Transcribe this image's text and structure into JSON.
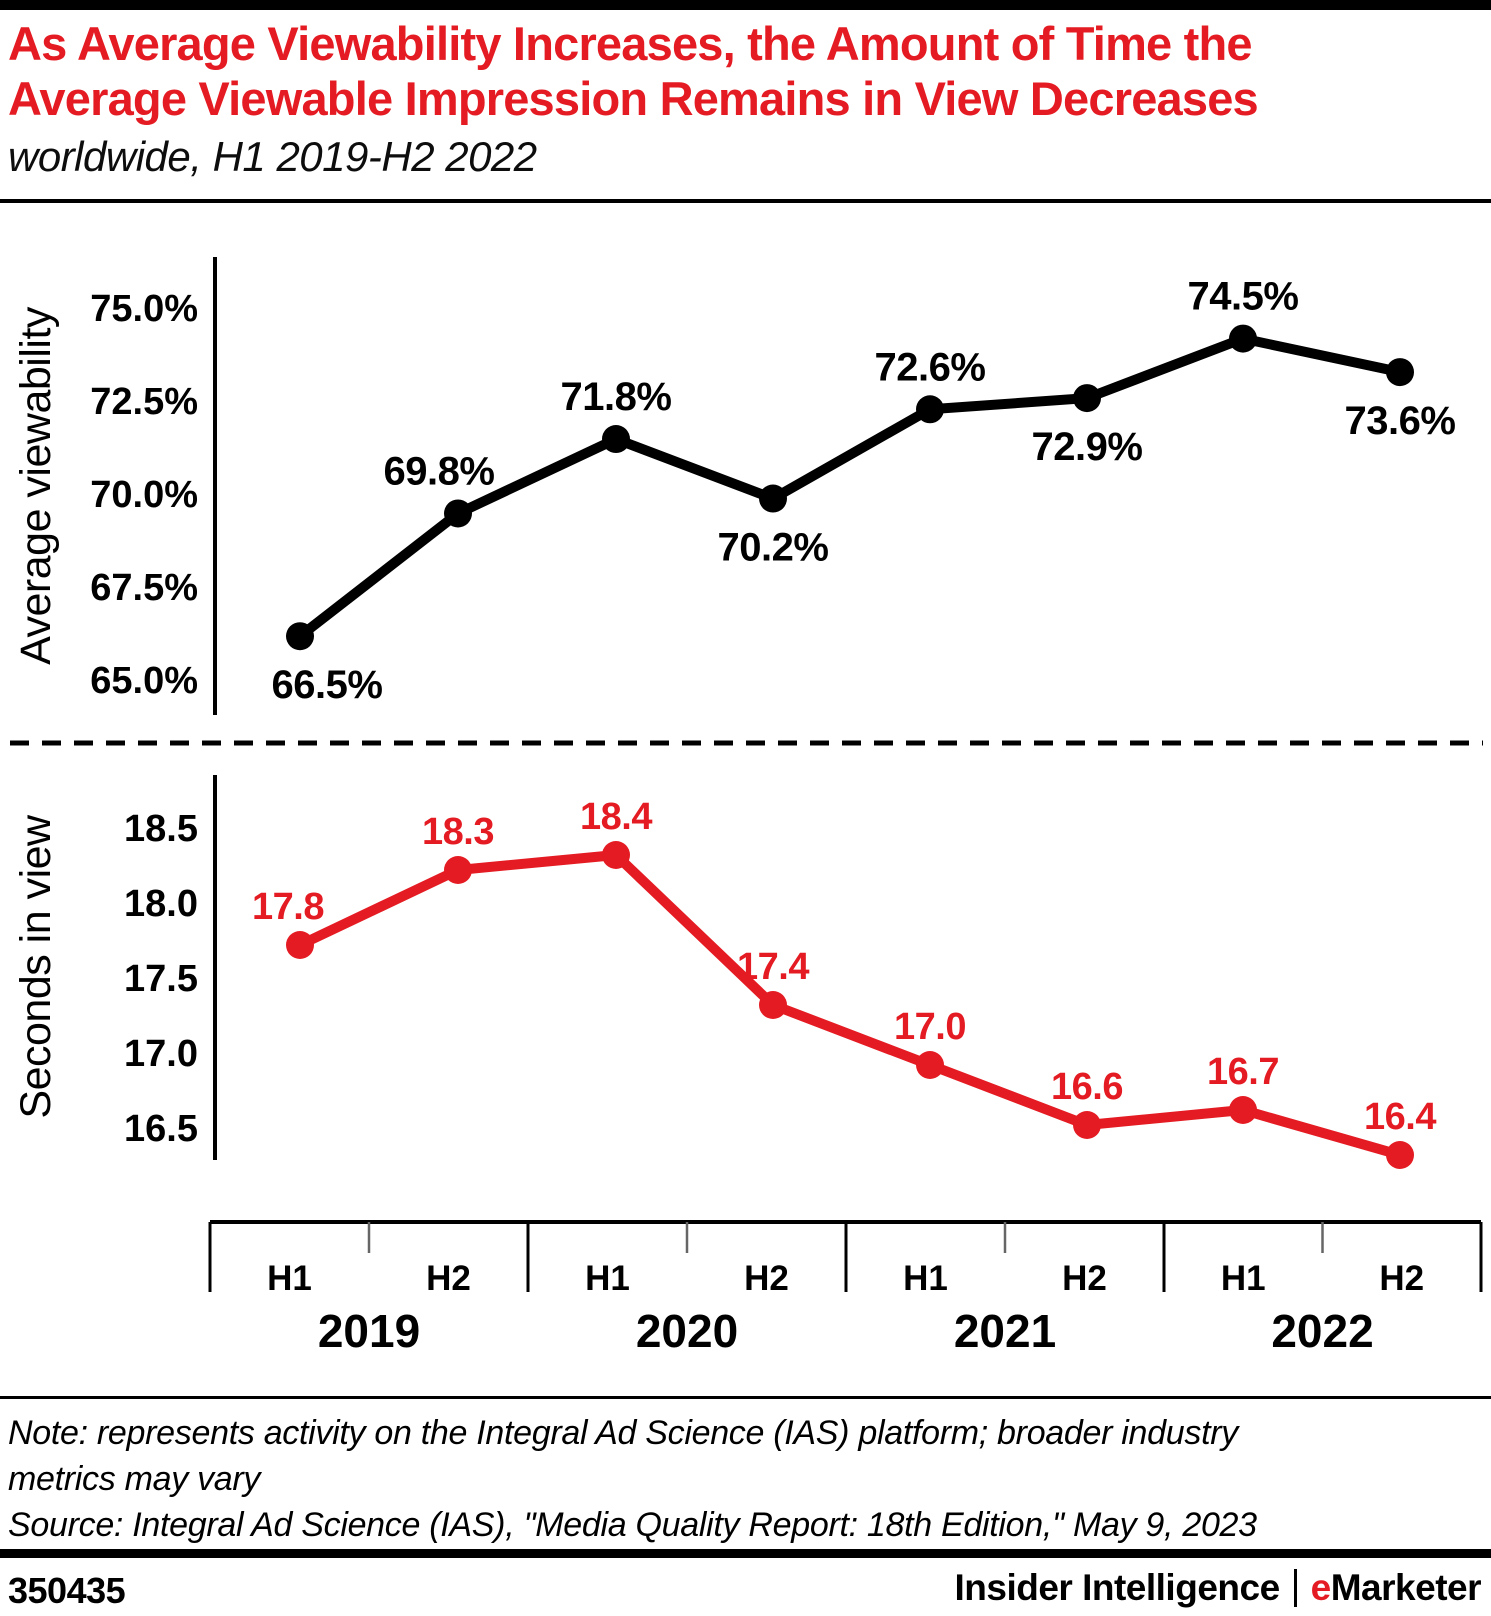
{
  "header": {
    "title_line1": "As Average Viewability Increases, the Amount of Time the",
    "title_line2": "Average Viewable Impression Remains in View Decreases",
    "subtitle": "worldwide, H1 2019-H2 2022"
  },
  "colors": {
    "accent_red": "#e41b22",
    "line_black": "#000000"
  },
  "chart_data": [
    {
      "type": "line",
      "name": "average-viewability",
      "ylabel": "Average viewability",
      "color": "#000000",
      "categories": [
        "H1 2019",
        "H2 2019",
        "H1 2020",
        "H2 2020",
        "H1 2021",
        "H2 2021",
        "H1 2022",
        "H2 2022"
      ],
      "values": [
        66.5,
        69.8,
        71.8,
        70.2,
        72.6,
        72.9,
        74.5,
        73.6
      ],
      "point_labels": [
        "66.5%",
        "69.8%",
        "71.8%",
        "70.2%",
        "72.6%",
        "72.9%",
        "74.5%",
        "73.6%"
      ],
      "label_positions": [
        "below",
        "above",
        "above",
        "below",
        "above",
        "below",
        "above",
        "below"
      ],
      "ytick_values": [
        75.0,
        72.5,
        70.0,
        67.5,
        65.0
      ],
      "ytick_labels": [
        "75.0%",
        "72.5%",
        "70.0%",
        "67.5%",
        "65.0%"
      ],
      "ylim": [
        64.2,
        75.6
      ],
      "grid": false,
      "legend": "none"
    },
    {
      "type": "line",
      "name": "seconds-in-view",
      "ylabel": "Seconds in view",
      "color": "#e41b22",
      "categories": [
        "H1 2019",
        "H2 2019",
        "H1 2020",
        "H2 2020",
        "H1 2021",
        "H2 2021",
        "H1 2022",
        "H2 2022"
      ],
      "values": [
        17.8,
        18.3,
        18.4,
        17.4,
        17.0,
        16.6,
        16.7,
        16.4
      ],
      "point_labels": [
        "17.8",
        "18.3",
        "18.4",
        "17.4",
        "17.0",
        "16.6",
        "16.7",
        "16.4"
      ],
      "label_positions": [
        "above",
        "above",
        "above",
        "above",
        "above",
        "above",
        "above",
        "above"
      ],
      "ytick_values": [
        18.5,
        18.0,
        17.5,
        17.0,
        16.5
      ],
      "ytick_labels": [
        "18.5",
        "18.0",
        "17.5",
        "17.0",
        "16.5"
      ],
      "ylim": [
        16.1,
        18.8
      ],
      "grid": false,
      "legend": "none"
    }
  ],
  "xaxis": {
    "periods": [
      "H1",
      "H2",
      "H1",
      "H2",
      "H1",
      "H2",
      "H1",
      "H2"
    ],
    "years": [
      "2019",
      "2020",
      "2021",
      "2022"
    ]
  },
  "footnote": {
    "note_line1": "Note: represents activity on the Integral Ad Science (IAS) platform; broader industry",
    "note_line2": "metrics may vary",
    "source": "Source: Integral Ad Science (IAS), \"Media Quality Report: 18th Edition,\" May 9, 2023"
  },
  "footer": {
    "chart_id": "350435",
    "brand_left": "Insider Intelligence",
    "brand_e": "e",
    "brand_marketer": "Marketer"
  }
}
